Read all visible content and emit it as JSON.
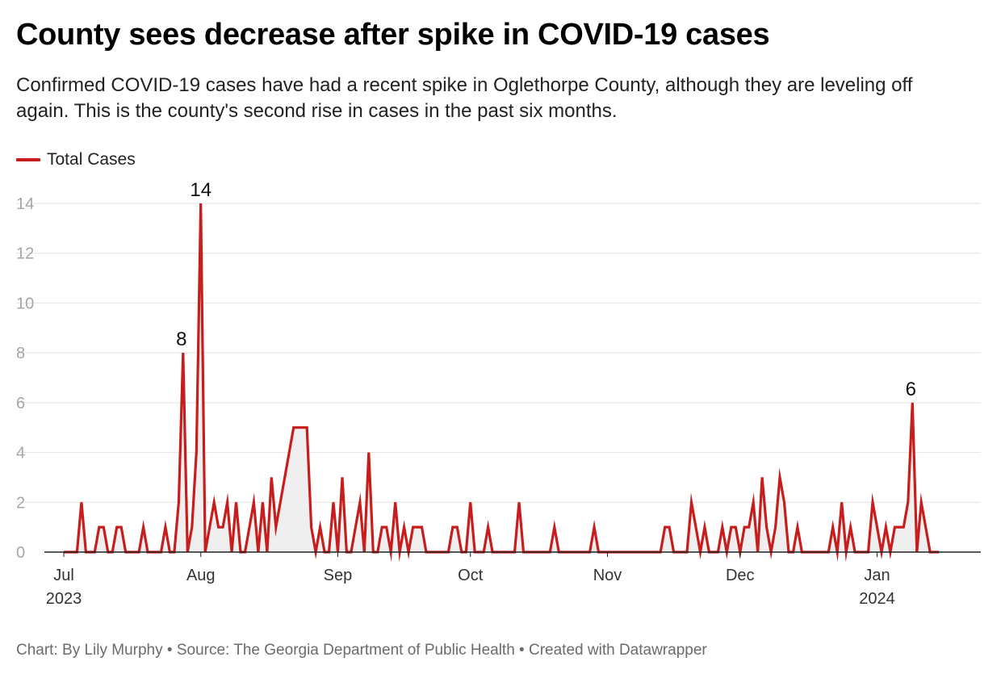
{
  "title": "County sees decrease after spike in COVID-19 cases",
  "subtitle": "Confirmed COVID-19 cases have had a recent spike in Oglethorpe County, although they are leveling off again. This is the county's second rise in cases in the past six months.",
  "footer": {
    "chart_by": "Chart: By Lily Murphy",
    "source": "Source: The Georgia Department of Public Health",
    "created": "Created with Datawrapper",
    "separator": " • "
  },
  "colors": {
    "line": "#c71e1d",
    "area": "#efefef",
    "grid": "#e2e2e2",
    "tick_text": "#a6a6a6",
    "axis_text": "#333333"
  },
  "chart_data": {
    "type": "line",
    "title": "County sees decrease after spike in COVID-19 cases",
    "xlabel": "",
    "ylabel": "",
    "x_range": [
      "2023-07-01",
      "2024-01-21"
    ],
    "ylim": [
      0,
      14
    ],
    "yticks": [
      0,
      2,
      4,
      6,
      8,
      10,
      12,
      14
    ],
    "xticks": [
      {
        "date": "2023-07-01",
        "label": "Jul",
        "sublabel": "2023"
      },
      {
        "date": "2023-08-01",
        "label": "Aug",
        "sublabel": ""
      },
      {
        "date": "2023-09-01",
        "label": "Sep",
        "sublabel": ""
      },
      {
        "date": "2023-10-01",
        "label": "Oct",
        "sublabel": ""
      },
      {
        "date": "2023-11-01",
        "label": "Nov",
        "sublabel": ""
      },
      {
        "date": "2023-12-01",
        "label": "Dec",
        "sublabel": ""
      },
      {
        "date": "2024-01-01",
        "label": "Jan",
        "sublabel": "2024"
      }
    ],
    "grid": true,
    "area_fill": true,
    "legend_position": "top-left",
    "series": [
      {
        "name": "Total Cases",
        "points": [
          [
            "2023-07-01",
            0
          ],
          [
            "2023-07-04",
            0
          ],
          [
            "2023-07-05",
            2
          ],
          [
            "2023-07-06",
            0
          ],
          [
            "2023-07-08",
            0
          ],
          [
            "2023-07-09",
            1
          ],
          [
            "2023-07-10",
            1
          ],
          [
            "2023-07-11",
            0
          ],
          [
            "2023-07-12",
            0
          ],
          [
            "2023-07-13",
            1
          ],
          [
            "2023-07-14",
            1
          ],
          [
            "2023-07-15",
            0
          ],
          [
            "2023-07-18",
            0
          ],
          [
            "2023-07-19",
            1
          ],
          [
            "2023-07-20",
            0
          ],
          [
            "2023-07-23",
            0
          ],
          [
            "2023-07-24",
            1
          ],
          [
            "2023-07-25",
            0
          ],
          [
            "2023-07-26",
            0
          ],
          [
            "2023-07-27",
            2
          ],
          [
            "2023-07-28",
            8
          ],
          [
            "2023-07-29",
            0
          ],
          [
            "2023-07-30",
            1
          ],
          [
            "2023-07-31",
            4
          ],
          [
            "2023-08-01",
            14
          ],
          [
            "2023-08-02",
            0
          ],
          [
            "2023-08-03",
            1
          ],
          [
            "2023-08-04",
            2
          ],
          [
            "2023-08-05",
            1
          ],
          [
            "2023-08-06",
            1
          ],
          [
            "2023-08-07",
            2
          ],
          [
            "2023-08-08",
            0
          ],
          [
            "2023-08-09",
            2
          ],
          [
            "2023-08-10",
            0
          ],
          [
            "2023-08-11",
            0
          ],
          [
            "2023-08-12",
            1
          ],
          [
            "2023-08-13",
            2
          ],
          [
            "2023-08-14",
            0
          ],
          [
            "2023-08-15",
            2
          ],
          [
            "2023-08-16",
            0
          ],
          [
            "2023-08-17",
            3
          ],
          [
            "2023-08-18",
            1
          ],
          [
            "2023-08-22",
            5
          ],
          [
            "2023-08-25",
            5
          ],
          [
            "2023-08-26",
            1
          ],
          [
            "2023-08-27",
            0
          ],
          [
            "2023-08-28",
            1
          ],
          [
            "2023-08-29",
            0
          ],
          [
            "2023-08-30",
            0
          ],
          [
            "2023-08-31",
            2
          ],
          [
            "2023-09-01",
            0
          ],
          [
            "2023-09-02",
            3
          ],
          [
            "2023-09-03",
            0
          ],
          [
            "2023-09-04",
            0
          ],
          [
            "2023-09-05",
            1
          ],
          [
            "2023-09-06",
            2
          ],
          [
            "2023-09-07",
            0
          ],
          [
            "2023-09-08",
            4
          ],
          [
            "2023-09-09",
            0
          ],
          [
            "2023-09-10",
            0
          ],
          [
            "2023-09-11",
            1
          ],
          [
            "2023-09-12",
            1
          ],
          [
            "2023-09-13",
            0
          ],
          [
            "2023-09-14",
            2
          ],
          [
            "2023-09-15",
            0
          ],
          [
            "2023-09-16",
            1
          ],
          [
            "2023-09-17",
            0
          ],
          [
            "2023-09-18",
            1
          ],
          [
            "2023-09-20",
            1
          ],
          [
            "2023-09-21",
            0
          ],
          [
            "2023-09-26",
            0
          ],
          [
            "2023-09-27",
            1
          ],
          [
            "2023-09-28",
            1
          ],
          [
            "2023-09-29",
            0
          ],
          [
            "2023-09-30",
            0
          ],
          [
            "2023-10-01",
            2
          ],
          [
            "2023-10-02",
            0
          ],
          [
            "2023-10-04",
            0
          ],
          [
            "2023-10-05",
            1
          ],
          [
            "2023-10-06",
            0
          ],
          [
            "2023-10-11",
            0
          ],
          [
            "2023-10-12",
            2
          ],
          [
            "2023-10-13",
            0
          ],
          [
            "2023-10-19",
            0
          ],
          [
            "2023-10-20",
            1
          ],
          [
            "2023-10-21",
            0
          ],
          [
            "2023-10-28",
            0
          ],
          [
            "2023-10-29",
            1
          ],
          [
            "2023-10-30",
            0
          ],
          [
            "2023-11-13",
            0
          ],
          [
            "2023-11-14",
            1
          ],
          [
            "2023-11-15",
            1
          ],
          [
            "2023-11-16",
            0
          ],
          [
            "2023-11-19",
            0
          ],
          [
            "2023-11-20",
            2
          ],
          [
            "2023-11-21",
            1
          ],
          [
            "2023-11-22",
            0
          ],
          [
            "2023-11-23",
            1
          ],
          [
            "2023-11-24",
            0
          ],
          [
            "2023-11-26",
            0
          ],
          [
            "2023-11-27",
            1
          ],
          [
            "2023-11-28",
            0
          ],
          [
            "2023-11-29",
            1
          ],
          [
            "2023-11-30",
            1
          ],
          [
            "2023-12-01",
            0
          ],
          [
            "2023-12-02",
            1
          ],
          [
            "2023-12-03",
            1
          ],
          [
            "2023-12-04",
            2
          ],
          [
            "2023-12-05",
            0
          ],
          [
            "2023-12-06",
            3
          ],
          [
            "2023-12-07",
            1
          ],
          [
            "2023-12-08",
            0
          ],
          [
            "2023-12-09",
            1
          ],
          [
            "2023-12-10",
            3
          ],
          [
            "2023-12-11",
            2
          ],
          [
            "2023-12-12",
            0
          ],
          [
            "2023-12-13",
            0
          ],
          [
            "2023-12-14",
            1
          ],
          [
            "2023-12-15",
            0
          ],
          [
            "2023-12-21",
            0
          ],
          [
            "2023-12-22",
            1
          ],
          [
            "2023-12-23",
            0
          ],
          [
            "2023-12-24",
            2
          ],
          [
            "2023-12-25",
            0
          ],
          [
            "2023-12-26",
            1
          ],
          [
            "2023-12-27",
            0
          ],
          [
            "2023-12-29",
            0
          ],
          [
            "2023-12-30",
            0
          ],
          [
            "2023-12-31",
            2
          ],
          [
            "2024-01-01",
            1
          ],
          [
            "2024-01-02",
            0
          ],
          [
            "2024-01-03",
            1
          ],
          [
            "2024-01-04",
            0
          ],
          [
            "2024-01-05",
            1
          ],
          [
            "2024-01-07",
            1
          ],
          [
            "2024-01-08",
            2
          ],
          [
            "2024-01-09",
            6
          ],
          [
            "2024-01-10",
            0
          ],
          [
            "2024-01-11",
            2
          ],
          [
            "2024-01-12",
            1
          ],
          [
            "2024-01-13",
            0
          ],
          [
            "2024-01-15",
            0
          ]
        ]
      }
    ],
    "annotations": [
      {
        "date": "2023-07-28",
        "value": 8,
        "text": "8"
      },
      {
        "date": "2023-08-01",
        "value": 14,
        "text": "14"
      },
      {
        "date": "2024-01-09",
        "value": 6,
        "text": "6"
      }
    ]
  }
}
